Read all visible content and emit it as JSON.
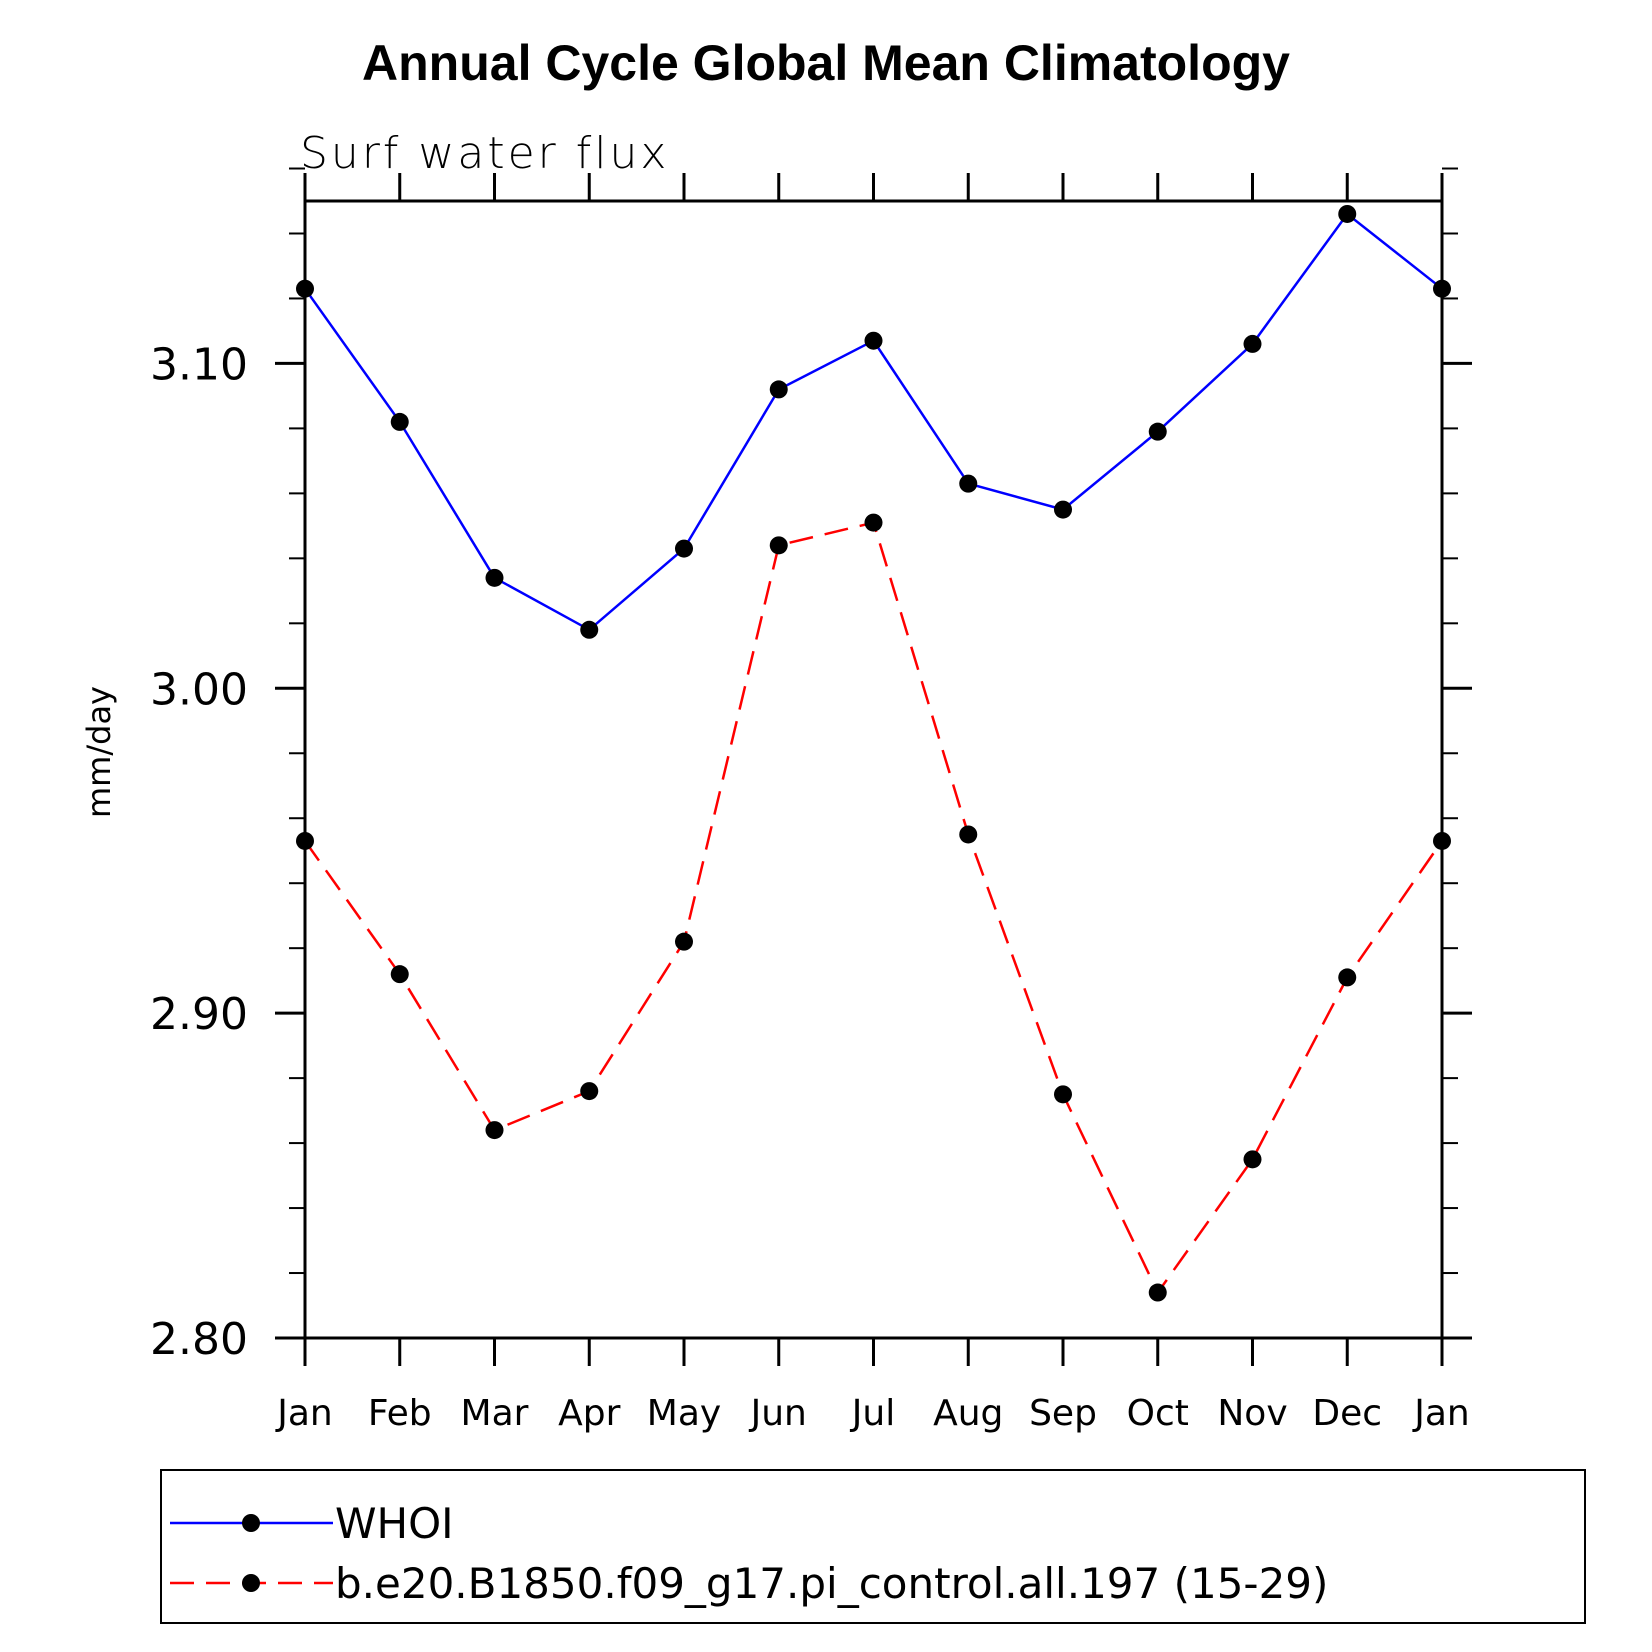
{
  "chart_data": {
    "type": "line",
    "title": "Annual Cycle Global Mean Climatology",
    "subtitle": "Surf water flux",
    "xlabel": "",
    "ylabel": "mm/day",
    "categories": [
      "Jan",
      "Feb",
      "Mar",
      "Apr",
      "May",
      "Jun",
      "Jul",
      "Aug",
      "Sep",
      "Oct",
      "Nov",
      "Dec",
      "Jan"
    ],
    "ylim": [
      2.8,
      3.15
    ],
    "yticks": [
      "2.80",
      "2.90",
      "3.00",
      "3.10"
    ],
    "ytick_values": [
      2.8,
      2.9,
      3.0,
      3.1
    ],
    "yminor_step": 0.02,
    "legend_position": "bottom",
    "series": [
      {
        "name": "WHOI",
        "color": "#0000ff",
        "line_style": "solid",
        "marker": "filled-circle",
        "values": [
          3.123,
          3.082,
          3.034,
          3.018,
          3.043,
          3.092,
          3.107,
          3.063,
          3.055,
          3.079,
          3.106,
          3.146,
          3.123
        ]
      },
      {
        "name": "b.e20.B1850.f09_g17.pi_control.all.197 (15-29)",
        "color": "#ff0000",
        "line_style": "dashed",
        "marker": "filled-circle",
        "values": [
          2.953,
          2.912,
          2.864,
          2.876,
          2.922,
          3.044,
          3.051,
          2.955,
          2.875,
          2.814,
          2.855,
          2.911,
          2.953
        ]
      }
    ]
  }
}
